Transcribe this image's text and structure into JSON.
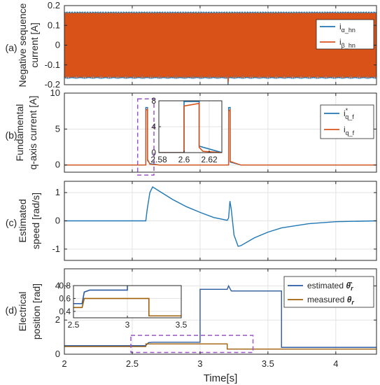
{
  "colors": {
    "blue": "#1f77b4",
    "orange": "#d95319",
    "dark_blue": "#2c5aa0",
    "brown": "#a0600a",
    "purple": "#9a55c9",
    "grid": "#e3e3e3",
    "axis": "#262626"
  },
  "figure": {
    "xlabel": "Time[s]",
    "x_ticks": [
      "2",
      "2.5",
      "3",
      "3.5",
      "4"
    ]
  },
  "chart_data": [
    {
      "type": "line",
      "panel_label": "(a)",
      "ylabel": [
        "Negative sequence",
        "current [A]"
      ],
      "xlim": [
        2,
        4.3
      ],
      "ylim": [
        -0.2,
        0.2
      ],
      "y_ticks": [
        -0.2,
        -0.1,
        0,
        0.1,
        0.2
      ],
      "y_tick_labels": [
        "-0.2",
        "-0.1",
        "0",
        "0.1",
        "0.2"
      ],
      "grid": true,
      "legend_position": "top-right",
      "series": [
        {
          "name": "i_α_hn",
          "name_main": "i",
          "name_sub": "α_hn",
          "color": "blue",
          "envelope": [
            0.17,
            -0.17
          ],
          "spikes": [
            {
              "x": 2.61,
              "max": 0.165,
              "min": -0.12
            },
            {
              "x": 3.21,
              "max": 0.06,
              "min": -0.2
            }
          ]
        },
        {
          "name": "i_β_hn",
          "name_main": "i",
          "name_sub": "β_hn",
          "color": "orange",
          "envelope": [
            0.165,
            -0.165
          ],
          "spikes": [
            {
              "x": 2.61,
              "max": 0.15,
              "min": -0.11
            },
            {
              "x": 3.21,
              "max": 0.05,
              "min": -0.19
            }
          ]
        }
      ]
    },
    {
      "type": "line",
      "panel_label": "(b)",
      "ylabel": [
        "Fundamental",
        "q-axis current [A]"
      ],
      "xlim": [
        2,
        4.3
      ],
      "ylim": [
        -1,
        10
      ],
      "y_ticks": [
        0,
        5,
        10
      ],
      "y_tick_labels": [
        "0",
        "5",
        "10"
      ],
      "grid": true,
      "legend_position": "top-right",
      "series": [
        {
          "name": "i*_q_f",
          "name_main": "i",
          "name_sup": "*",
          "name_sub": "q_f",
          "color": "blue",
          "points": [
            [
              2,
              0
            ],
            [
              2.6,
              0
            ],
            [
              2.6,
              8
            ],
            [
              2.613,
              8
            ],
            [
              2.613,
              0.6
            ],
            [
              2.63,
              0.2
            ],
            [
              2.7,
              0
            ],
            [
              3.21,
              0
            ],
            [
              3.21,
              8
            ],
            [
              3.222,
              8
            ],
            [
              3.222,
              0.4
            ],
            [
              3.3,
              0
            ],
            [
              4.3,
              0
            ]
          ]
        },
        {
          "name": "i_q_f",
          "name_main": "i",
          "name_sub": "q_f",
          "color": "orange",
          "points": [
            [
              2,
              0
            ],
            [
              2.6,
              0
            ],
            [
              2.601,
              7.6
            ],
            [
              2.612,
              7.8
            ],
            [
              2.613,
              0.8
            ],
            [
              2.63,
              0.1
            ],
            [
              2.7,
              0
            ],
            [
              3.21,
              0
            ],
            [
              3.211,
              7.5
            ],
            [
              3.221,
              7.7
            ],
            [
              3.222,
              0.5
            ],
            [
              3.3,
              0
            ],
            [
              4.3,
              0
            ]
          ]
        }
      ],
      "highlight_box": {
        "x": [
          2.54,
          2.66
        ],
        "y": [
          -1.4,
          9.2
        ]
      },
      "inset": {
        "xlim": [
          2.58,
          2.63
        ],
        "ylim": [
          0,
          8
        ],
        "x_ticks": [
          2.58,
          2.6,
          2.62
        ],
        "x_tick_labels": [
          "2.58",
          "2.6",
          "2.62"
        ],
        "y_ticks": [
          0,
          4,
          8
        ],
        "y_tick_labels": [
          "0",
          "4",
          "8"
        ],
        "series": [
          {
            "color": "blue",
            "points": [
              [
                2.58,
                0
              ],
              [
                2.6,
                0
              ],
              [
                2.6,
                7.9
              ],
              [
                2.612,
                7.9
              ],
              [
                2.612,
                1
              ],
              [
                2.63,
                0
              ]
            ]
          },
          {
            "color": "orange",
            "points": [
              [
                2.58,
                0
              ],
              [
                2.6,
                0
              ],
              [
                2.6,
                7.2
              ],
              [
                2.612,
                7.6
              ],
              [
                2.612,
                0.8
              ],
              [
                2.615,
                0.2
              ],
              [
                2.63,
                0
              ]
            ]
          }
        ]
      }
    },
    {
      "type": "line",
      "panel_label": "(c)",
      "ylabel": [
        "Estimated",
        "speed [rad/s]"
      ],
      "xlim": [
        2,
        4.3
      ],
      "ylim": [
        -1.4,
        1.4
      ],
      "y_ticks": [
        -1,
        0,
        1
      ],
      "y_tick_labels": [
        "-1",
        "0",
        "1"
      ],
      "grid": true,
      "series": [
        {
          "color": "blue",
          "points": [
            [
              2,
              0
            ],
            [
              2.6,
              0
            ],
            [
              2.61,
              0.4
            ],
            [
              2.63,
              1
            ],
            [
              2.65,
              1.2
            ],
            [
              2.7,
              1.05
            ],
            [
              2.8,
              0.75
            ],
            [
              2.9,
              0.5
            ],
            [
              3,
              0.3
            ],
            [
              3.1,
              0.12
            ],
            [
              3.2,
              0.02
            ],
            [
              3.21,
              0.1
            ],
            [
              3.22,
              0.7
            ],
            [
              3.23,
              0.4
            ],
            [
              3.25,
              -0.5
            ],
            [
              3.28,
              -0.9
            ],
            [
              3.3,
              -0.88
            ],
            [
              3.4,
              -0.6
            ],
            [
              3.5,
              -0.4
            ],
            [
              3.6,
              -0.25
            ],
            [
              3.8,
              -0.1
            ],
            [
              4,
              -0.03
            ],
            [
              4.3,
              0
            ]
          ]
        }
      ]
    },
    {
      "type": "line",
      "panel_label": "(d)",
      "ylabel": [
        "Electrical",
        "position [rad]"
      ],
      "xlim": [
        2,
        4.3
      ],
      "ylim": [
        0,
        5
      ],
      "y_ticks": [
        0,
        2,
        4
      ],
      "y_tick_labels": [
        "0",
        "2",
        "4"
      ],
      "grid": true,
      "legend_position": "top-right",
      "series": [
        {
          "name": "estimated θ̂r",
          "name_text": "estimated",
          "name_symbol": "θ̂",
          "name_sub": "r",
          "color": "dark_blue",
          "points": [
            [
              2,
              0.5
            ],
            [
              2.6,
              0.5
            ],
            [
              2.62,
              0.68
            ],
            [
              2.65,
              0.7
            ],
            [
              3,
              0.7
            ],
            [
              3,
              3.8
            ],
            [
              3.2,
              3.8
            ],
            [
              3.21,
              4.0
            ],
            [
              3.23,
              3.7
            ],
            [
              3.3,
              3.7
            ],
            [
              3.6,
              3.7
            ],
            [
              3.6,
              0.4
            ],
            [
              4.3,
              0.4
            ]
          ]
        },
        {
          "name": "measured θr",
          "name_text": "measured",
          "name_symbol": "θ",
          "name_sub": "r",
          "color": "brown",
          "points": [
            [
              2,
              0.45
            ],
            [
              2.6,
              0.45
            ],
            [
              2.6,
              0.6
            ],
            [
              3.2,
              0.6
            ],
            [
              3.2,
              0.3
            ],
            [
              3.6,
              0.3
            ],
            [
              3.6,
              0.3
            ],
            [
              4.3,
              0.3
            ]
          ]
        }
      ],
      "highlight_box": {
        "x": [
          2.49,
          3.39
        ],
        "y": [
          0.1,
          1.1
        ]
      },
      "inset": {
        "xlim": [
          2.5,
          3.5
        ],
        "ylim": [
          0.3,
          0.8
        ],
        "x_ticks": [
          2.5,
          3,
          3.5
        ],
        "x_tick_labels": [
          "2.5",
          "3",
          "3.5"
        ],
        "y_ticks": [
          0.4,
          0.6,
          0.8
        ],
        "y_tick_labels": [
          "0.4",
          "0.6",
          "0.8"
        ],
        "series": [
          {
            "color": "dark_blue",
            "points": [
              [
                2.5,
                0.52
              ],
              [
                2.58,
                0.52
              ],
              [
                2.6,
                0.7
              ],
              [
                2.65,
                0.73
              ],
              [
                3,
                0.73
              ],
              [
                3,
                0.8
              ]
            ]
          },
          {
            "color": "brown",
            "points": [
              [
                2.5,
                0.46
              ],
              [
                2.58,
                0.46
              ],
              [
                2.6,
                0.6
              ],
              [
                3.2,
                0.6
              ],
              [
                3.2,
                0.33
              ],
              [
                3.5,
                0.33
              ]
            ]
          }
        ]
      }
    }
  ]
}
